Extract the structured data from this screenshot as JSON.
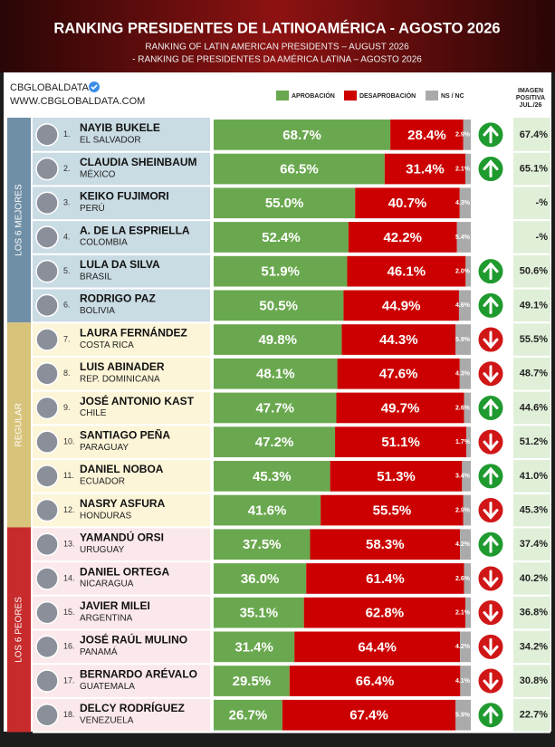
{
  "header": {
    "title": "RANKING PRESIDENTES DE LATINOAMÉRICA - AGOSTO 2026",
    "subtitle_en": "RANKING OF LATIN AMERICAN PRESIDENTS – AUGUST 2026",
    "subtitle_pt": "- RANKING DE PRESIDENTES DA AMÉRICA LATINA – AGOSTO 2026",
    "brand": "CBGLOBALDATA",
    "url": "WWW.CBGLOBALDATA.COM"
  },
  "groups": [
    {
      "label": "LOS 6 MEJORES",
      "color": "#c9dbe3"
    },
    {
      "label": "REGULAR",
      "color": "#fdf5d8"
    },
    {
      "label": "LOS 6 PEORES",
      "color": "#fbe8ea"
    }
  ],
  "chart_data": {
    "type": "bar",
    "orientation": "horizontal",
    "stacked": true,
    "ranks": [
      "1.",
      "2.",
      "3.",
      "4.",
      "5.",
      "6.",
      "7.",
      "8.",
      "9.",
      "10.",
      "11.",
      "12.",
      "13.",
      "14.",
      "15.",
      "16.",
      "17.",
      "18."
    ],
    "categories": [
      "NAYIB BUKELE",
      "CLAUDIA SHEINBAUM",
      "KEIKO FUJIMORI",
      "A. DE LA ESPRIELLA",
      "LULA DA SILVA",
      "RODRIGO PAZ",
      "LAURA FERNÁNDEZ",
      "LUIS ABINADER",
      "JOSÉ ANTONIO KAST",
      "SANTIAGO PEÑA",
      "DANIEL NOBOA",
      "NASRY ASFURA",
      "YAMANDÚ ORSI",
      "DANIEL ORTEGA",
      "JAVIER MILEI",
      "JOSÉ RAÚL MULINO",
      "BERNARDO ARÉVALO",
      "DELCY RODRÍGUEZ"
    ],
    "countries": [
      "EL SALVADOR",
      "MÉXICO",
      "PERÚ",
      "COLOMBIA",
      "BRASIL",
      "BOLIVIA",
      "COSTA RICA",
      "REP. DOMINICANA",
      "CHILE",
      "PARAGUAY",
      "ECUADOR",
      "HONDURAS",
      "URUGUAY",
      "NICARAGUA",
      "ARGENTINA",
      "PANAMÁ",
      "GUATEMALA",
      "VENEZUELA"
    ],
    "xlim": [
      0,
      100
    ],
    "series": [
      {
        "name": "APROBACIÓN",
        "color": "#6aa84f",
        "values": [
          68.7,
          66.5,
          55.0,
          52.4,
          51.9,
          50.5,
          49.8,
          48.1,
          47.7,
          47.2,
          45.3,
          41.6,
          37.5,
          36.0,
          35.1,
          31.4,
          29.5,
          26.7
        ],
        "value_labels": [
          "68.7%",
          "66.5%",
          "55.0%",
          "52.4%",
          "51.9%",
          "50.5%",
          "49.8%",
          "48.1%",
          "47.7%",
          "47.2%",
          "45.3%",
          "41.6%",
          "37.5%",
          "36.0%",
          "35.1%",
          "31.4%",
          "29.5%",
          "26.7%"
        ]
      },
      {
        "name": "DESAPROBACIÓN",
        "color": "#cc0000",
        "values": [
          28.4,
          31.4,
          40.7,
          42.2,
          46.1,
          44.9,
          44.3,
          47.6,
          49.7,
          51.1,
          51.3,
          55.5,
          58.3,
          61.4,
          62.8,
          64.4,
          66.4,
          67.4
        ],
        "value_labels": [
          "28.4%",
          "31.4%",
          "40.7%",
          "42.2%",
          "46.1%",
          "44.9%",
          "44.3%",
          "47.6%",
          "49.7%",
          "51.1%",
          "51.3%",
          "55.5%",
          "58.3%",
          "61.4%",
          "62.8%",
          "64.4%",
          "66.4%",
          "67.4%"
        ]
      },
      {
        "name": "NS / NC",
        "color": "#aaaaaa",
        "values": [
          2.9,
          2.1,
          4.3,
          5.4,
          2.0,
          4.6,
          5.9,
          4.3,
          2.6,
          1.7,
          3.4,
          2.9,
          4.2,
          2.6,
          2.1,
          4.2,
          4.1,
          5.9
        ],
        "value_labels": [
          "2.9%",
          "2.1%",
          "4.3%",
          "5.4%",
          "2.0%",
          "4.6%",
          "5.9%",
          "4.3%",
          "2.6%",
          "1.7%",
          "3.4%",
          "2.9%",
          "4.2%",
          "2.6%",
          "2.1%",
          "4.2%",
          "4.1%",
          "5.9%"
        ]
      }
    ],
    "trend": [
      "up",
      "up",
      null,
      null,
      "up",
      "up",
      "down",
      "down",
      "up",
      "down",
      "up",
      "down",
      "up",
      "down",
      "down",
      "down",
      "down",
      "up"
    ],
    "image_column": {
      "title_lines": [
        "IMAGEN",
        "POSITIVA",
        "JUL./26"
      ],
      "values": [
        67.4,
        65.1,
        null,
        null,
        50.6,
        49.1,
        55.5,
        48.7,
        44.6,
        51.2,
        41.0,
        45.3,
        37.4,
        40.2,
        36.8,
        34.2,
        30.8,
        22.7
      ],
      "value_labels": [
        "67.4%",
        "65.1%",
        "-%",
        "-%",
        "50.6%",
        "49.1%",
        "55.5%",
        "48.7%",
        "44.6%",
        "51.2%",
        "41.0%",
        "45.3%",
        "37.4%",
        "40.2%",
        "36.8%",
        "34.2%",
        "30.8%",
        "22.7%"
      ]
    }
  }
}
